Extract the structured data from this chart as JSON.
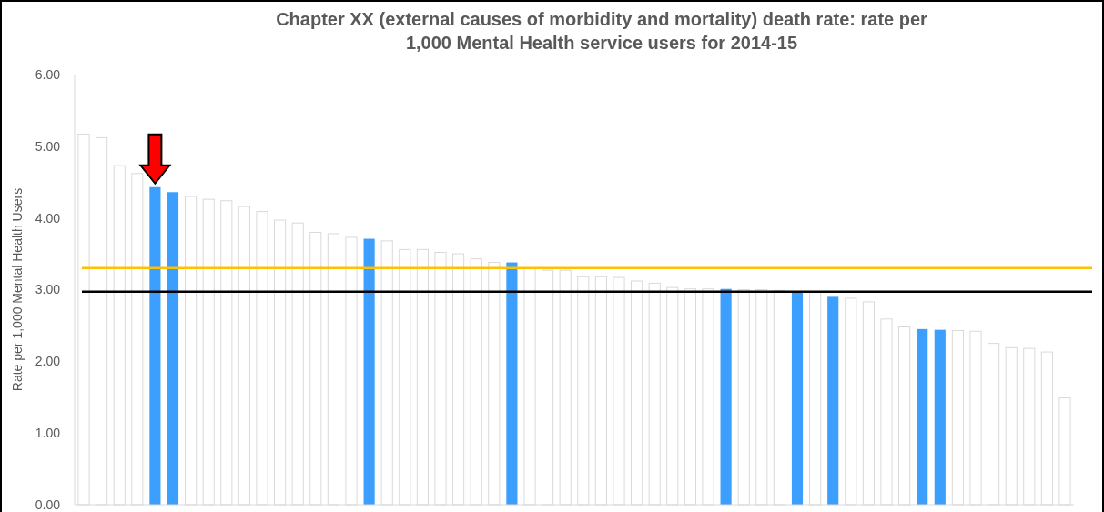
{
  "chart_data": {
    "type": "bar",
    "title": "Chapter XX (external causes of morbidity and mortality) death rate: rate per 1,000 Mental Health service users for 2014-15",
    "ylabel": "Rate per 1,000 Mental Health Users",
    "categories": [
      null,
      null,
      null,
      null,
      null,
      null,
      null,
      null,
      null,
      null,
      null,
      null,
      null,
      null,
      null,
      null,
      null,
      null,
      null,
      null,
      null,
      null,
      null,
      null,
      null,
      null,
      null,
      null,
      null,
      null,
      null,
      null,
      null,
      null,
      null,
      null,
      null,
      null,
      null,
      null,
      null,
      null,
      null,
      null,
      null,
      null,
      null,
      null,
      null,
      null,
      null,
      null,
      null,
      null,
      null,
      null
    ],
    "values": [
      5.17,
      5.12,
      4.73,
      4.62,
      4.43,
      4.36,
      4.3,
      4.26,
      4.24,
      4.16,
      4.09,
      3.97,
      3.93,
      3.8,
      3.78,
      3.73,
      3.71,
      3.68,
      3.56,
      3.56,
      3.52,
      3.5,
      3.43,
      3.38,
      3.38,
      3.29,
      3.27,
      3.27,
      3.18,
      3.18,
      3.17,
      3.12,
      3.09,
      3.03,
      3.01,
      3.01,
      3.01,
      3.0,
      3.0,
      2.99,
      2.97,
      2.97,
      2.9,
      2.88,
      2.83,
      2.59,
      2.48,
      2.45,
      2.44,
      2.43,
      2.42,
      2.25,
      2.19,
      2.18,
      2.13,
      1.49
    ],
    "colors": [
      "#ffffff",
      "#ffffff",
      "#ffffff",
      "#ffffff",
      "#3d9ffd",
      "#3d9ffd",
      "#ffffff",
      "#ffffff",
      "#ffffff",
      "#ffffff",
      "#ffffff",
      "#ffffff",
      "#ffffff",
      "#ffffff",
      "#ffffff",
      "#ffffff",
      "#3d9ffd",
      "#ffffff",
      "#ffffff",
      "#ffffff",
      "#ffffff",
      "#ffffff",
      "#ffffff",
      "#ffffff",
      "#3d9ffd",
      "#ffffff",
      "#ffffff",
      "#ffffff",
      "#ffffff",
      "#ffffff",
      "#ffffff",
      "#ffffff",
      "#ffffff",
      "#ffffff",
      "#ffffff",
      "#ffffff",
      "#3d9ffd",
      "#ffffff",
      "#ffffff",
      "#ffffff",
      "#3d9ffd",
      "#ffffff",
      "#3d9ffd",
      "#ffffff",
      "#ffffff",
      "#ffffff",
      "#ffffff",
      "#3d9ffd",
      "#3d9ffd",
      "#ffffff",
      "#ffffff",
      "#ffffff",
      "#ffffff",
      "#ffffff",
      "#ffffff",
      "#ffffff"
    ],
    "ylim": [
      0,
      6
    ],
    "yticks": [
      {
        "value": 0,
        "label": "0.00"
      },
      {
        "value": 1,
        "label": "1.00"
      },
      {
        "value": 2,
        "label": "2.00"
      },
      {
        "value": 3,
        "label": "3.00"
      },
      {
        "value": 4,
        "label": "4.00"
      },
      {
        "value": 5,
        "label": "5.00"
      },
      {
        "value": 6,
        "label": "6.00"
      }
    ],
    "tick_labels": "y",
    "ref_lines": [
      {
        "axis": "y",
        "value": 3.3,
        "color": "#ffc000"
      },
      {
        "axis": "y",
        "value": 2.97,
        "color": "#000000"
      }
    ]
  }
}
